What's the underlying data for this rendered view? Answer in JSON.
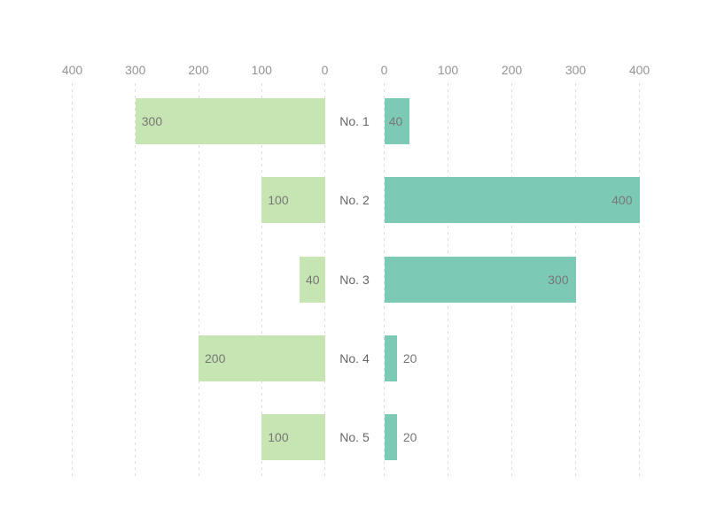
{
  "chart_data": {
    "type": "bar",
    "variant": "horizontal-diverging",
    "title": "",
    "categories": [
      "No. 1",
      "No. 2",
      "No. 3",
      "No. 4",
      "No. 5"
    ],
    "series": [
      {
        "name": "left",
        "color": "#c6e5b3",
        "values": [
          300,
          100,
          40,
          200,
          100
        ]
      },
      {
        "name": "right",
        "color": "#7ccab5",
        "values": [
          40,
          400,
          300,
          20,
          20
        ]
      }
    ],
    "left_axis_ticks": [
      400,
      300,
      200,
      100,
      0
    ],
    "right_axis_ticks": [
      0,
      100,
      200,
      300,
      400
    ],
    "axis_range": [
      0,
      400
    ],
    "grid": "dashed-vertical",
    "legend": "none",
    "value_labels": "shown-at-bar-ends",
    "colors": {
      "left_bar": "#c6e5b3",
      "right_bar": "#7ccab5",
      "gridline": "#dcdcdc",
      "tick_label": "#949494",
      "category_label": "#666666",
      "value_label": "#777777",
      "background": "#ffffff"
    }
  }
}
